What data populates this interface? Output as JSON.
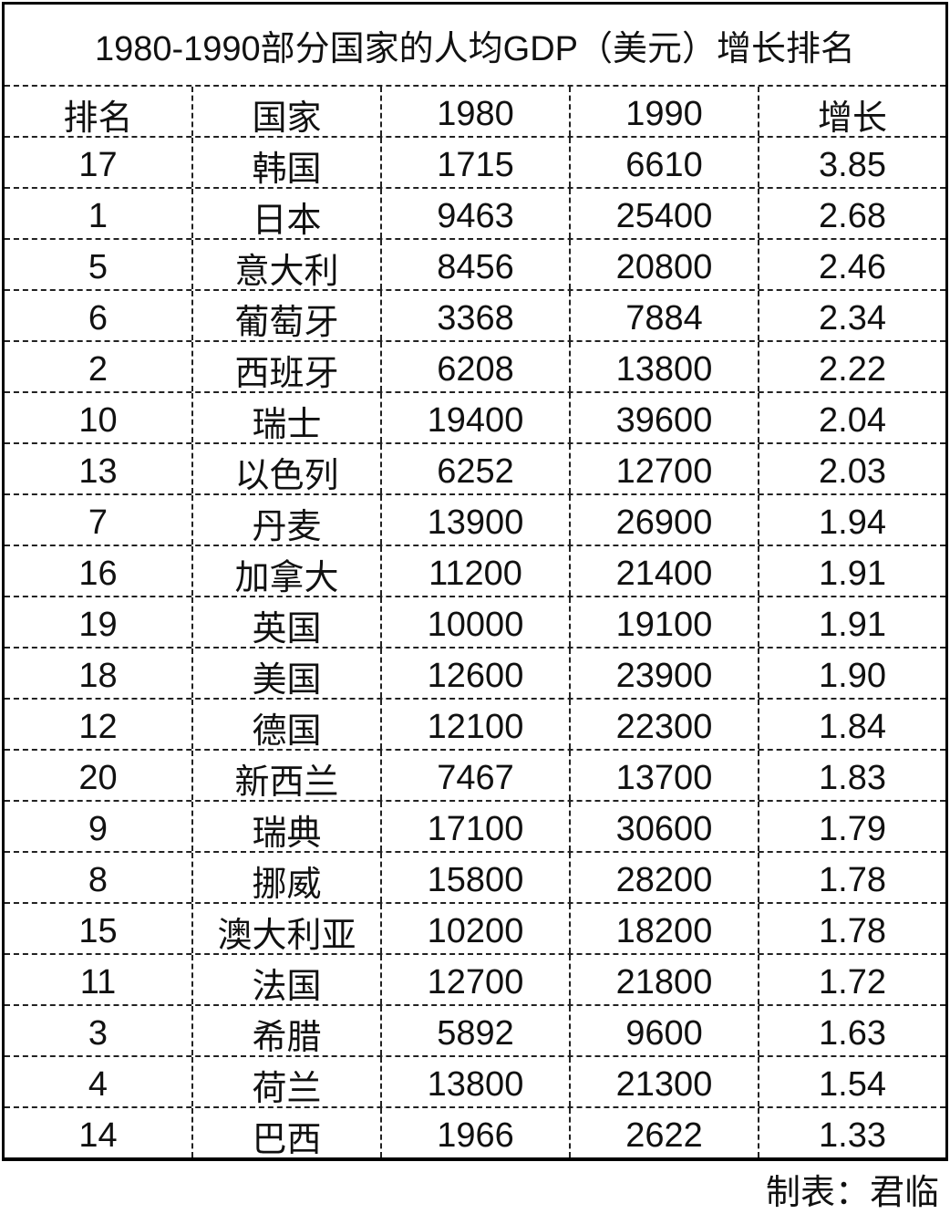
{
  "title": "1980-1990部分国家的人均GDP（美元）增长排名",
  "headers": [
    "排名",
    "国家",
    "1980",
    "1990",
    "增长"
  ],
  "rows": [
    [
      "17",
      "韩国",
      "1715",
      "6610",
      "3.85"
    ],
    [
      "1",
      "日本",
      "9463",
      "25400",
      "2.68"
    ],
    [
      "5",
      "意大利",
      "8456",
      "20800",
      "2.46"
    ],
    [
      "6",
      "葡萄牙",
      "3368",
      "7884",
      "2.34"
    ],
    [
      "2",
      "西班牙",
      "6208",
      "13800",
      "2.22"
    ],
    [
      "10",
      "瑞士",
      "19400",
      "39600",
      "2.04"
    ],
    [
      "13",
      "以色列",
      "6252",
      "12700",
      "2.03"
    ],
    [
      "7",
      "丹麦",
      "13900",
      "26900",
      "1.94"
    ],
    [
      "16",
      "加拿大",
      "11200",
      "21400",
      "1.91"
    ],
    [
      "19",
      "英国",
      "10000",
      "19100",
      "1.91"
    ],
    [
      "18",
      "美国",
      "12600",
      "23900",
      "1.90"
    ],
    [
      "12",
      "德国",
      "12100",
      "22300",
      "1.84"
    ],
    [
      "20",
      "新西兰",
      "7467",
      "13700",
      "1.83"
    ],
    [
      "9",
      "瑞典",
      "17100",
      "30600",
      "1.79"
    ],
    [
      "8",
      "挪威",
      "15800",
      "28200",
      "1.78"
    ],
    [
      "15",
      "澳大利亚",
      "10200",
      "18200",
      "1.78"
    ],
    [
      "11",
      "法国",
      "12700",
      "21800",
      "1.72"
    ],
    [
      "3",
      "希腊",
      "5892",
      "9600",
      "1.63"
    ],
    [
      "4",
      "荷兰",
      "13800",
      "21300",
      "1.54"
    ],
    [
      "14",
      "巴西",
      "1966",
      "2622",
      "1.33"
    ]
  ],
  "footer": "制表：君临"
}
